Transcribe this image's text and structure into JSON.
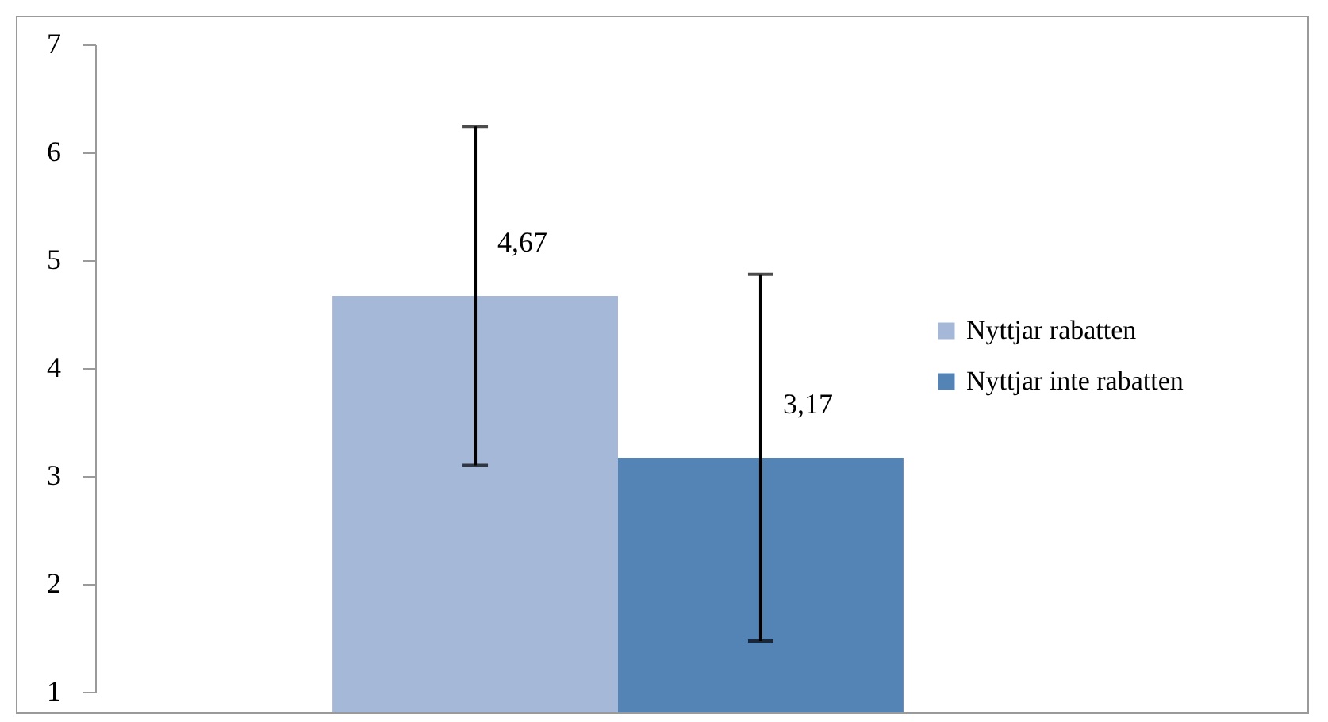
{
  "chart_data": {
    "type": "bar",
    "categories": [
      null
    ],
    "series": [
      {
        "name": "Nyttjar rabatten",
        "color": "#a5b8d7",
        "values": [
          4.67
        ],
        "errors": [
          1.57
        ],
        "value_labels": [
          "4,67"
        ]
      },
      {
        "name": "Nyttjar inte rabatten",
        "color": "#5484b6",
        "values": [
          3.17
        ],
        "errors": [
          1.7
        ],
        "value_labels": [
          "3,17"
        ]
      }
    ],
    "ylim": [
      1,
      7
    ],
    "yticks": [
      1,
      2,
      3,
      4,
      5,
      6,
      7
    ],
    "grid": false,
    "legend": "right",
    "tick_labels": "y"
  }
}
